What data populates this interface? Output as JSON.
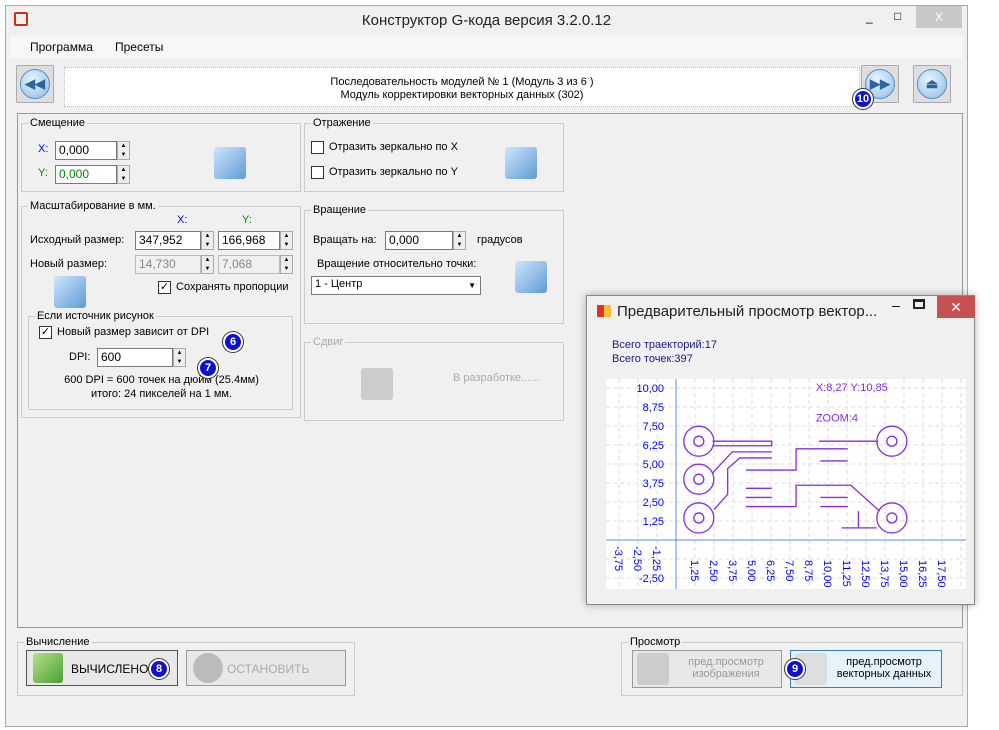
{
  "window": {
    "title": "Конструктор G-кода версия 3.2.0.12",
    "minimize": "_",
    "maximize": "□",
    "close": "X"
  },
  "menu": {
    "items": [
      "Программа",
      "Пресеты"
    ]
  },
  "sequence": {
    "line1": "Последовательность модулей № 1 (Модуль 3 из 6 )",
    "line2": "Модуль корректировки векторных данных (302)"
  },
  "offset": {
    "legend": "Смещение",
    "x_label": "X:",
    "x_value": "0,000",
    "y_label": "Y:",
    "y_value": "0,000"
  },
  "mirror": {
    "legend": "Отражение",
    "mirror_x": "Отразить зеркально по X",
    "mirror_y": "Отразить зеркально по Y"
  },
  "scale": {
    "legend": "Масштабирование в мм.",
    "col_x": "X:",
    "col_y": "Y:",
    "source_label": "Исходный размер:",
    "source_x": "347,952",
    "source_y": "166,968",
    "new_label": "Новый размер:",
    "new_x": "14,730",
    "new_y": "7,068",
    "keep_ratio": "Сохранять пропорции",
    "keep_ratio_checked": true
  },
  "image_source": {
    "legend": "Если источник рисунок",
    "dpi_dependent": "Новый размер зависит от DPI",
    "dpi_checked": true,
    "dpi_label": "DPI:",
    "dpi_value": "600",
    "info1": "600 DPI = 600 точек на дюйм (25.4мм)",
    "info2": "итого: 24 пикселей на 1 мм."
  },
  "rotation": {
    "legend": "Вращение",
    "rotate_label": "Вращать на:",
    "rotate_value": "0,000",
    "units": "градусов",
    "relative_label": "Вращение относительно точки:",
    "point_value": "1 - Центр"
  },
  "shift": {
    "legend": "Сдвиг",
    "status": "В разработке......"
  },
  "compute": {
    "legend": "Вычисление",
    "done": "ВЫЧИСЛЕНО",
    "stop": "ОСТАНОВИТЬ"
  },
  "view": {
    "legend": "Просмотр",
    "image_preview": "пред.просмотр изображения",
    "vector_preview": "пред.просмотр векторных данных"
  },
  "badges": [
    "6",
    "7",
    "8",
    "9",
    "10"
  ],
  "preview": {
    "title": "Предварительный просмотр вектор...",
    "trajectories": "Всего траекторий:17",
    "points": "Всего точек:397",
    "cursor": "X:8,27 Y:10,85",
    "zoom": "ZOOM:4",
    "y_ticks": [
      "10,00",
      "8,75",
      "7,50",
      "6,25",
      "5,00",
      "3,75",
      "2,50",
      "1,25",
      "-2,50"
    ],
    "x_ticks": [
      "1,25",
      "2,50",
      "3,75",
      "5,00",
      "6,25",
      "7,50",
      "8,75",
      "10,00",
      "11,25",
      "12,50",
      "13,75",
      "15,00",
      "16,25",
      "17,50"
    ],
    "x_neg_ticks": [
      "-3,75",
      "-2,50",
      "-1,25"
    ]
  },
  "colors": {
    "accent": "#1010d0",
    "plot": "#8a2be2",
    "axis": "#5b8fe0",
    "tick": "#0000ff"
  }
}
